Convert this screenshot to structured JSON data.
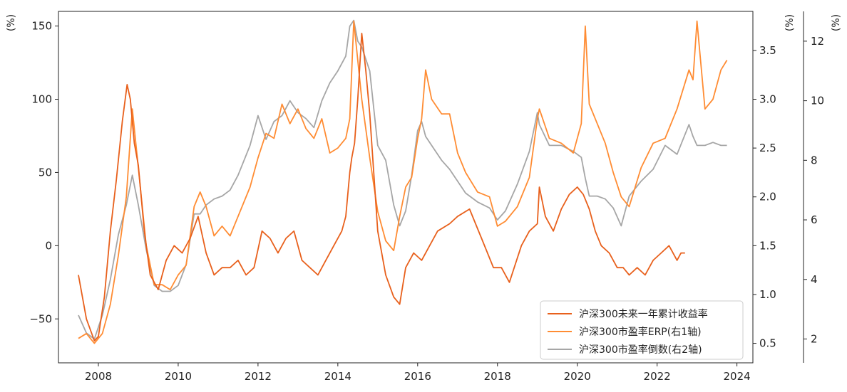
{
  "chart_data": {
    "type": "line",
    "title": "",
    "xlabel": "",
    "x_ticks": [
      "2008",
      "2010",
      "2012",
      "2014",
      "2016",
      "2018",
      "2020",
      "2022",
      "2024"
    ],
    "x_range": [
      2007.0,
      2024.4
    ],
    "axes": {
      "left": {
        "unit": "(%)",
        "ylim": [
          -80,
          160
        ],
        "ticks": [
          150,
          100,
          50,
          0,
          -50
        ],
        "tick_labels": [
          "150",
          "100",
          "50",
          "0",
          "−50"
        ]
      },
      "right1": {
        "unit": "(%)",
        "ylim": [
          0.3,
          3.9
        ],
        "ticks": [
          3.5,
          3.0,
          2.5,
          2.0,
          1.5,
          1.0,
          0.5
        ],
        "tick_labels": [
          "3.5",
          "3.0",
          "2.5",
          "2.0",
          "1.5",
          "1.0",
          "0.5"
        ]
      },
      "right2": {
        "unit": "(%)",
        "ylim": [
          1.2,
          13.0
        ],
        "ticks": [
          12,
          10,
          8,
          6,
          4,
          2
        ],
        "tick_labels": [
          "12",
          "10",
          "8",
          "6",
          "4",
          "2"
        ]
      }
    },
    "series": [
      {
        "name": "沪深300未来一年累计收益率",
        "axis": "left",
        "color": "#E8601C",
        "x": [
          2007.5,
          2007.7,
          2007.9,
          2008.0,
          2008.15,
          2008.3,
          2008.45,
          2008.6,
          2008.72,
          2008.8,
          2008.9,
          2009.0,
          2009.15,
          2009.3,
          2009.5,
          2009.7,
          2009.9,
          2010.1,
          2010.3,
          2010.5,
          2010.7,
          2010.9,
          2011.1,
          2011.3,
          2011.5,
          2011.7,
          2011.9,
          2012.1,
          2012.3,
          2012.5,
          2012.7,
          2012.9,
          2013.1,
          2013.3,
          2013.5,
          2013.7,
          2013.9,
          2014.1,
          2014.2,
          2014.3,
          2014.35,
          2014.42,
          2014.5,
          2014.6,
          2014.7,
          2014.8,
          2014.9,
          2015.0,
          2015.2,
          2015.4,
          2015.55,
          2015.7,
          2015.9,
          2016.1,
          2016.3,
          2016.5,
          2016.8,
          2017.0,
          2017.3,
          2017.6,
          2017.9,
          2018.1,
          2018.3,
          2018.6,
          2018.8,
          2019.0,
          2019.05,
          2019.2,
          2019.4,
          2019.6,
          2019.8,
          2020.0,
          2020.15,
          2020.3,
          2020.45,
          2020.6,
          2020.8,
          2021.0,
          2021.15,
          2021.3,
          2021.5,
          2021.7,
          2021.9,
          2022.1,
          2022.3,
          2022.5,
          2022.6,
          2022.7
        ],
        "values": [
          -20,
          -50,
          -65,
          -62,
          -35,
          10,
          45,
          85,
          110,
          100,
          70,
          55,
          10,
          -20,
          -30,
          -10,
          0,
          -5,
          5,
          20,
          -5,
          -20,
          -15,
          -15,
          -10,
          -20,
          -15,
          10,
          5,
          -5,
          5,
          10,
          -10,
          -15,
          -20,
          -10,
          0,
          10,
          20,
          50,
          60,
          70,
          100,
          145,
          120,
          90,
          50,
          10,
          -20,
          -35,
          -40,
          -15,
          -5,
          -10,
          0,
          10,
          15,
          20,
          25,
          5,
          -15,
          -15,
          -25,
          0,
          10,
          15,
          40,
          20,
          10,
          25,
          35,
          40,
          35,
          25,
          10,
          0,
          -5,
          -15,
          -15,
          -20,
          -15,
          -20,
          -10,
          -5,
          0,
          -10,
          -5,
          -5
        ]
      },
      {
        "name": "沪深300市盈率ERP(右1轴)",
        "axis": "right1",
        "color": "#FF8C33",
        "x": [
          2007.5,
          2007.7,
          2007.9,
          2008.1,
          2008.3,
          2008.5,
          2008.7,
          2008.85,
          2009.0,
          2009.2,
          2009.4,
          2009.6,
          2009.8,
          2010.0,
          2010.2,
          2010.4,
          2010.55,
          2010.7,
          2010.9,
          2011.1,
          2011.3,
          2011.5,
          2011.8,
          2012.0,
          2012.2,
          2012.4,
          2012.6,
          2012.8,
          2013.0,
          2013.2,
          2013.4,
          2013.6,
          2013.8,
          2014.0,
          2014.2,
          2014.3,
          2014.4,
          2014.5,
          2014.6,
          2014.8,
          2015.0,
          2015.2,
          2015.4,
          2015.55,
          2015.7,
          2015.85,
          2016.0,
          2016.1,
          2016.2,
          2016.35,
          2016.6,
          2016.8,
          2017.0,
          2017.2,
          2017.5,
          2017.8,
          2018.0,
          2018.2,
          2018.5,
          2018.8,
          2019.0,
          2019.05,
          2019.3,
          2019.6,
          2019.9,
          2020.1,
          2020.2,
          2020.3,
          2020.5,
          2020.7,
          2020.9,
          2021.1,
          2021.3,
          2021.6,
          2021.9,
          2022.2,
          2022.5,
          2022.8,
          2022.9,
          2023.0,
          2023.2,
          2023.4,
          2023.6,
          2023.75
        ],
        "values": [
          0.55,
          0.6,
          0.5,
          0.6,
          0.9,
          1.4,
          2.0,
          2.9,
          2.3,
          1.5,
          1.1,
          1.1,
          1.05,
          1.2,
          1.3,
          1.9,
          2.05,
          1.9,
          1.6,
          1.7,
          1.6,
          1.8,
          2.1,
          2.4,
          2.65,
          2.6,
          2.95,
          2.75,
          2.9,
          2.7,
          2.6,
          2.8,
          2.45,
          2.5,
          2.6,
          2.8,
          3.8,
          3.4,
          3.0,
          2.4,
          1.85,
          1.55,
          1.45,
          1.8,
          2.1,
          2.2,
          2.6,
          2.8,
          3.3,
          3.0,
          2.85,
          2.85,
          2.45,
          2.25,
          2.05,
          2.0,
          1.7,
          1.75,
          1.9,
          2.2,
          2.8,
          2.9,
          2.6,
          2.55,
          2.45,
          2.75,
          3.75,
          2.95,
          2.75,
          2.55,
          2.25,
          2.0,
          1.9,
          2.3,
          2.55,
          2.6,
          2.9,
          3.3,
          3.2,
          3.8,
          2.9,
          3.0,
          3.3,
          3.4
        ]
      },
      {
        "name": "沪深300市盈率倒数(右2轴)",
        "axis": "right2",
        "color": "#A6A6A6",
        "x": [
          2007.5,
          2007.7,
          2007.9,
          2008.1,
          2008.3,
          2008.5,
          2008.7,
          2008.85,
          2009.0,
          2009.2,
          2009.4,
          2009.6,
          2009.8,
          2010.0,
          2010.2,
          2010.4,
          2010.55,
          2010.7,
          2010.9,
          2011.1,
          2011.3,
          2011.5,
          2011.8,
          2012.0,
          2012.2,
          2012.4,
          2012.6,
          2012.8,
          2013.0,
          2013.2,
          2013.4,
          2013.6,
          2013.8,
          2014.0,
          2014.2,
          2014.3,
          2014.4,
          2014.5,
          2014.6,
          2014.8,
          2015.0,
          2015.2,
          2015.4,
          2015.55,
          2015.7,
          2015.85,
          2016.0,
          2016.1,
          2016.2,
          2016.35,
          2016.6,
          2016.8,
          2017.0,
          2017.2,
          2017.5,
          2017.8,
          2018.0,
          2018.2,
          2018.5,
          2018.8,
          2019.0,
          2019.05,
          2019.3,
          2019.6,
          2019.9,
          2020.1,
          2020.2,
          2020.3,
          2020.5,
          2020.7,
          2020.9,
          2021.1,
          2021.3,
          2021.6,
          2021.9,
          2022.2,
          2022.5,
          2022.8,
          2022.9,
          2023.0,
          2023.2,
          2023.4,
          2023.6,
          2023.75
        ],
        "values": [
          2.8,
          2.2,
          2.0,
          2.8,
          4.0,
          5.5,
          6.5,
          7.5,
          6.5,
          5.0,
          3.8,
          3.6,
          3.6,
          3.8,
          4.5,
          6.2,
          6.2,
          6.5,
          6.7,
          6.8,
          7.0,
          7.5,
          8.5,
          9.5,
          8.7,
          9.3,
          9.5,
          10.0,
          9.6,
          9.4,
          9.1,
          10.0,
          10.6,
          11.0,
          11.5,
          12.5,
          12.7,
          12.0,
          11.8,
          11.0,
          8.5,
          8.0,
          6.5,
          5.8,
          6.3,
          7.5,
          9.0,
          9.3,
          8.8,
          8.5,
          8.0,
          7.7,
          7.3,
          6.9,
          6.6,
          6.4,
          6.0,
          6.3,
          7.2,
          8.3,
          9.6,
          9.2,
          8.5,
          8.5,
          8.3,
          8.1,
          7.4,
          6.8,
          6.8,
          6.7,
          6.4,
          5.8,
          6.8,
          7.3,
          7.7,
          8.5,
          8.2,
          9.2,
          8.8,
          8.5,
          8.5,
          8.6,
          8.5,
          8.5
        ]
      }
    ],
    "legend": {
      "position": "bottom-right",
      "entries": [
        "沪深300未来一年累计收益率",
        "沪深300市盈率ERP(右1轴)",
        "沪深300市盈率倒数(右2轴)"
      ]
    }
  }
}
